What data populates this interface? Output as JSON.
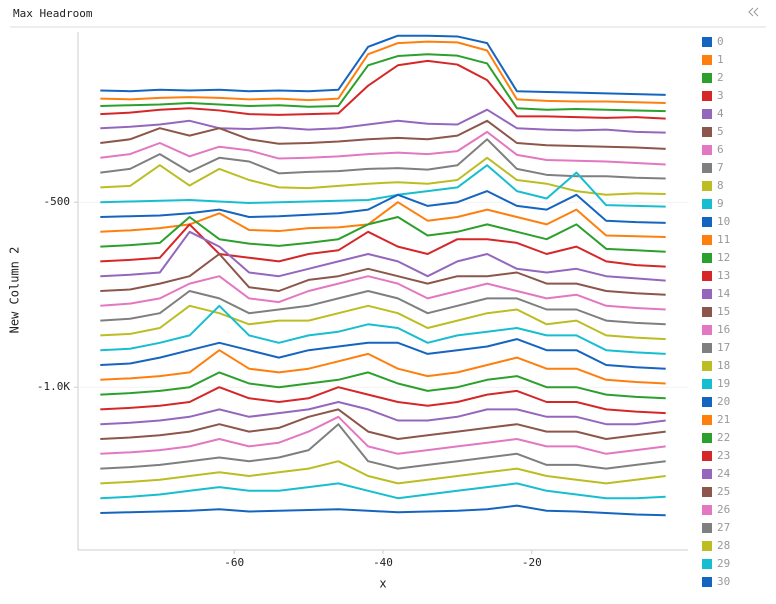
{
  "chart_data": {
    "type": "line",
    "title": "Max Headroom",
    "x_label": "x",
    "y_label": "New Column 2",
    "xlim": [
      -81,
      1
    ],
    "xticks": [
      -60,
      -40,
      -20
    ],
    "ylim": [
      -1440,
      -40
    ],
    "yticks": [
      -500,
      {
        "value": -1000,
        "label": "-1.0K"
      }
    ],
    "x": [
      -78,
      -74,
      -70,
      -66,
      -62,
      -58,
      -54,
      -50,
      -46,
      -42,
      -38,
      -34,
      -30,
      -26,
      -22,
      -18,
      -14,
      -10,
      -6,
      -2
    ],
    "series": [
      {
        "name": "0",
        "color": "#1565c0",
        "values": [
          -198,
          -200,
          -196,
          -198,
          -196,
          -200,
          -198,
          -200,
          -196,
          -80,
          -50,
          -50,
          -52,
          -70,
          -200,
          -202,
          -204,
          -206,
          -208,
          -210
        ]
      },
      {
        "name": "1",
        "color": "#ff7f0e",
        "values": [
          -220,
          -222,
          -218,
          -216,
          -218,
          -222,
          -220,
          -224,
          -220,
          -100,
          -70,
          -66,
          -68,
          -90,
          -222,
          -226,
          -228,
          -228,
          -230,
          -232
        ]
      },
      {
        "name": "2",
        "color": "#2ca02c",
        "values": [
          -240,
          -238,
          -236,
          -232,
          -236,
          -240,
          -238,
          -242,
          -240,
          -130,
          -105,
          -100,
          -104,
          -125,
          -246,
          -250,
          -248,
          -250,
          -252,
          -254
        ]
      },
      {
        "name": "3",
        "color": "#d62728",
        "values": [
          -262,
          -258,
          -250,
          -246,
          -252,
          -262,
          -264,
          -262,
          -260,
          -185,
          -130,
          -118,
          -128,
          -170,
          -268,
          -268,
          -270,
          -272,
          -270,
          -274
        ]
      },
      {
        "name": "4",
        "color": "#9467bd",
        "values": [
          -300,
          -296,
          -290,
          -280,
          -300,
          -302,
          -298,
          -304,
          -300,
          -290,
          -280,
          -288,
          -290,
          -250,
          -300,
          -304,
          -306,
          -304,
          -310,
          -312
        ]
      },
      {
        "name": "5",
        "color": "#8c564b",
        "values": [
          -340,
          -330,
          -300,
          -320,
          -300,
          -330,
          -342,
          -340,
          -336,
          -330,
          -326,
          -330,
          -320,
          -280,
          -340,
          -346,
          -348,
          -350,
          -352,
          -356
        ]
      },
      {
        "name": "6",
        "color": "#e377c2",
        "values": [
          -380,
          -370,
          -340,
          -376,
          -350,
          -360,
          -382,
          -380,
          -376,
          -370,
          -366,
          -370,
          -362,
          -310,
          -372,
          -386,
          -388,
          -390,
          -394,
          -398
        ]
      },
      {
        "name": "7",
        "color": "#7f7f7f",
        "values": [
          -420,
          -410,
          -370,
          -418,
          -380,
          -390,
          -422,
          -418,
          -416,
          -410,
          -408,
          -412,
          -400,
          -330,
          -410,
          -426,
          -430,
          -430,
          -434,
          -436
        ]
      },
      {
        "name": "8",
        "color": "#bcbd22",
        "values": [
          -460,
          -456,
          -400,
          -455,
          -410,
          -440,
          -460,
          -462,
          -456,
          -450,
          -446,
          -450,
          -440,
          -380,
          -440,
          -450,
          -470,
          -480,
          -476,
          -478
        ]
      },
      {
        "name": "9",
        "color": "#17becf",
        "values": [
          -500,
          -498,
          -496,
          -494,
          -498,
          -502,
          -500,
          -498,
          -496,
          -494,
          -480,
          -470,
          -460,
          -400,
          -470,
          -490,
          -420,
          -508,
          -510,
          -512
        ]
      },
      {
        "name": "10",
        "color": "#1565c0",
        "values": [
          -540,
          -538,
          -536,
          -530,
          -520,
          -540,
          -538,
          -534,
          -530,
          -520,
          -480,
          -510,
          -500,
          -470,
          -510,
          -520,
          -480,
          -550,
          -554,
          -556
        ]
      },
      {
        "name": "11",
        "color": "#ff7f0e",
        "values": [
          -580,
          -576,
          -570,
          -560,
          -530,
          -575,
          -578,
          -570,
          -568,
          -560,
          -500,
          -550,
          -540,
          -520,
          -540,
          -560,
          -520,
          -590,
          -592,
          -594
        ]
      },
      {
        "name": "12",
        "color": "#2ca02c",
        "values": [
          -620,
          -616,
          -610,
          -540,
          -600,
          -612,
          -618,
          -610,
          -600,
          -560,
          -540,
          -590,
          -580,
          -560,
          -580,
          -600,
          -560,
          -626,
          -630,
          -634
        ]
      },
      {
        "name": "13",
        "color": "#d62728",
        "values": [
          -660,
          -656,
          -650,
          -560,
          -640,
          -650,
          -660,
          -640,
          -630,
          -580,
          -620,
          -640,
          -600,
          -600,
          -610,
          -640,
          -620,
          -660,
          -670,
          -674
        ]
      },
      {
        "name": "14",
        "color": "#9467bd",
        "values": [
          -700,
          -696,
          -690,
          -580,
          -620,
          -690,
          -700,
          -680,
          -660,
          -640,
          -660,
          -700,
          -660,
          -640,
          -680,
          -690,
          -680,
          -700,
          -706,
          -712
        ]
      },
      {
        "name": "15",
        "color": "#8c564b",
        "values": [
          -740,
          -736,
          -720,
          -700,
          -640,
          -730,
          -740,
          -710,
          -700,
          -680,
          -700,
          -720,
          -700,
          -700,
          -690,
          -720,
          -720,
          -740,
          -746,
          -750
        ]
      },
      {
        "name": "16",
        "color": "#e377c2",
        "values": [
          -780,
          -774,
          -760,
          -720,
          -700,
          -760,
          -770,
          -740,
          -720,
          -700,
          -720,
          -760,
          -740,
          -720,
          -740,
          -760,
          -750,
          -780,
          -786,
          -790
        ]
      },
      {
        "name": "17",
        "color": "#7f7f7f",
        "values": [
          -820,
          -815,
          -800,
          -740,
          -760,
          -800,
          -790,
          -780,
          -760,
          -740,
          -760,
          -800,
          -780,
          -760,
          -760,
          -790,
          -790,
          -820,
          -826,
          -830
        ]
      },
      {
        "name": "18",
        "color": "#bcbd22",
        "values": [
          -860,
          -856,
          -840,
          -780,
          -800,
          -830,
          -820,
          -820,
          -800,
          -780,
          -800,
          -840,
          -820,
          -800,
          -790,
          -830,
          -820,
          -860,
          -866,
          -870
        ]
      },
      {
        "name": "19",
        "color": "#17becf",
        "values": [
          -900,
          -896,
          -880,
          -860,
          -780,
          -860,
          -880,
          -860,
          -850,
          -830,
          -840,
          -880,
          -860,
          -850,
          -840,
          -860,
          -860,
          -900,
          -906,
          -910
        ]
      },
      {
        "name": "20",
        "color": "#1565c0",
        "values": [
          -940,
          -936,
          -920,
          -900,
          -880,
          -900,
          -920,
          -900,
          -890,
          -880,
          -880,
          -910,
          -900,
          -890,
          -870,
          -900,
          -900,
          -940,
          -946,
          -950
        ]
      },
      {
        "name": "21",
        "color": "#ff7f0e",
        "values": [
          -980,
          -976,
          -970,
          -960,
          -900,
          -950,
          -960,
          -950,
          -930,
          -910,
          -950,
          -970,
          -960,
          -940,
          -920,
          -950,
          -950,
          -980,
          -986,
          -990
        ]
      },
      {
        "name": "22",
        "color": "#2ca02c",
        "values": [
          -1020,
          -1016,
          -1010,
          -1000,
          -960,
          -990,
          -1000,
          -990,
          -980,
          -960,
          -990,
          -1010,
          -1000,
          -980,
          -970,
          -1000,
          -1000,
          -1020,
          -1026,
          -1030
        ]
      },
      {
        "name": "23",
        "color": "#d62728",
        "values": [
          -1060,
          -1056,
          -1050,
          -1040,
          -1000,
          -1030,
          -1040,
          -1030,
          -1000,
          -1020,
          -1040,
          -1050,
          -1040,
          -1020,
          -1010,
          -1040,
          -1040,
          -1060,
          -1066,
          -1070
        ]
      },
      {
        "name": "24",
        "color": "#9467bd",
        "values": [
          -1100,
          -1096,
          -1090,
          -1080,
          -1060,
          -1080,
          -1070,
          -1060,
          -1040,
          -1060,
          -1090,
          -1090,
          -1080,
          -1060,
          -1060,
          -1080,
          -1080,
          -1100,
          -1100,
          -1090
        ]
      },
      {
        "name": "25",
        "color": "#8c564b",
        "values": [
          -1140,
          -1136,
          -1130,
          -1120,
          -1100,
          -1120,
          -1110,
          -1080,
          -1060,
          -1120,
          -1140,
          -1130,
          -1120,
          -1110,
          -1100,
          -1120,
          -1120,
          -1140,
          -1130,
          -1120
        ]
      },
      {
        "name": "26",
        "color": "#e377c2",
        "values": [
          -1180,
          -1176,
          -1170,
          -1160,
          -1140,
          -1160,
          -1150,
          -1120,
          -1080,
          -1160,
          -1180,
          -1170,
          -1160,
          -1150,
          -1140,
          -1160,
          -1160,
          -1180,
          -1170,
          -1160
        ]
      },
      {
        "name": "27",
        "color": "#7f7f7f",
        "values": [
          -1220,
          -1216,
          -1210,
          -1200,
          -1190,
          -1200,
          -1190,
          -1170,
          -1100,
          -1200,
          -1220,
          -1210,
          -1200,
          -1190,
          -1180,
          -1210,
          -1210,
          -1220,
          -1210,
          -1200
        ]
      },
      {
        "name": "28",
        "color": "#bcbd22",
        "values": [
          -1260,
          -1256,
          -1250,
          -1240,
          -1230,
          -1240,
          -1230,
          -1220,
          -1200,
          -1240,
          -1260,
          -1250,
          -1240,
          -1230,
          -1220,
          -1240,
          -1250,
          -1260,
          -1250,
          -1240
        ]
      },
      {
        "name": "29",
        "color": "#17becf",
        "values": [
          -1300,
          -1296,
          -1290,
          -1280,
          -1270,
          -1280,
          -1280,
          -1270,
          -1260,
          -1280,
          -1300,
          -1290,
          -1280,
          -1270,
          -1260,
          -1280,
          -1290,
          -1300,
          -1300,
          -1296
        ]
      },
      {
        "name": "30",
        "color": "#1565c0",
        "values": [
          -1340,
          -1338,
          -1336,
          -1334,
          -1330,
          -1336,
          -1334,
          -1332,
          -1330,
          -1334,
          -1338,
          -1336,
          -1334,
          -1330,
          -1320,
          -1334,
          -1336,
          -1340,
          -1344,
          -1346
        ]
      }
    ]
  }
}
